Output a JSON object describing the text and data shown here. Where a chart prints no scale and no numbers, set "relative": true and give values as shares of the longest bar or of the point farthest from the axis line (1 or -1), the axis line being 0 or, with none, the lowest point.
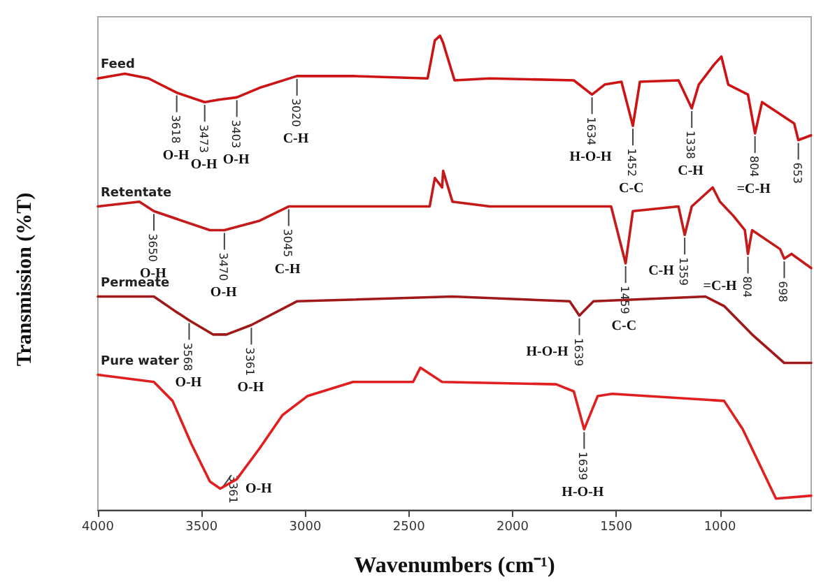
{
  "chart_data": {
    "type": "line",
    "relative": true,
    "xlabel": "Wavenumbers (cm⁻¹)",
    "ylabel": "Transmission (%T)",
    "xlim": [
      4000,
      560
    ],
    "xticks": [
      4000,
      3500,
      3000,
      2500,
      2000,
      1500,
      1000
    ],
    "grid": false,
    "legend": false,
    "marker": "none",
    "line_style": "solid",
    "series": [
      {
        "name": "Feed",
        "color": "#cc1414",
        "x": [
          4000,
          3870,
          3756,
          3620,
          3485,
          3418,
          3330,
          3221,
          3040,
          2768,
          2410,
          2375,
          2350,
          2335,
          2315,
          2280,
          2110,
          1705,
          1617,
          1556,
          1475,
          1420,
          1386,
          1200,
          1136,
          1102,
          1027,
          993,
          960,
          865,
          831,
          797,
          642,
          622,
          561
        ],
        "values": [
          0.91,
          0.92,
          0.91,
          0.88,
          0.86,
          0.865,
          0.87,
          0.89,
          0.915,
          0.915,
          0.91,
          0.99,
          1.0,
          0.985,
          0.956,
          0.906,
          0.91,
          0.906,
          0.876,
          0.897,
          0.903,
          0.81,
          0.903,
          0.906,
          0.847,
          0.897,
          0.94,
          0.956,
          0.897,
          0.876,
          0.794,
          0.86,
          0.815,
          0.78,
          0.79
        ]
      },
      {
        "name": "Retentate",
        "color": "#c41a1a",
        "x": [
          4000,
          3800,
          3730,
          3460,
          3390,
          3220,
          3080,
          2940,
          2400,
          2375,
          2340,
          2335,
          2290,
          2110,
          1525,
          1455,
          1420,
          1200,
          1170,
          1136,
          1035,
          1000,
          935,
          880,
          865,
          845,
          710,
          690,
          655,
          560
        ],
        "values": [
          0.64,
          0.65,
          0.63,
          0.59,
          0.59,
          0.61,
          0.64,
          0.64,
          0.64,
          0.7,
          0.68,
          0.715,
          0.65,
          0.64,
          0.64,
          0.52,
          0.63,
          0.64,
          0.58,
          0.64,
          0.68,
          0.65,
          0.62,
          0.59,
          0.54,
          0.59,
          0.55,
          0.53,
          0.54,
          0.51
        ]
      },
      {
        "name": "Permeate",
        "color": "#a01818",
        "x": [
          4000,
          3730,
          3630,
          3560,
          3445,
          3380,
          3260,
          3040,
          2290,
          1725,
          1678,
          1610,
          1070,
          980,
          845,
          690,
          560
        ],
        "values": [
          0.45,
          0.45,
          0.42,
          0.4,
          0.37,
          0.37,
          0.39,
          0.44,
          0.45,
          0.44,
          0.41,
          0.44,
          0.45,
          0.43,
          0.37,
          0.31,
          0.31
        ]
      },
      {
        "name": "Pure water",
        "color": "#e02020",
        "x": [
          4000,
          3730,
          3640,
          3550,
          3460,
          3410,
          3330,
          3220,
          3110,
          2990,
          2770,
          2480,
          2445,
          2340,
          1790,
          1705,
          1655,
          1590,
          1520,
          980,
          890,
          730,
          560
        ],
        "values": [
          0.285,
          0.27,
          0.23,
          0.14,
          0.06,
          0.045,
          0.065,
          0.13,
          0.2,
          0.24,
          0.27,
          0.27,
          0.3,
          0.27,
          0.265,
          0.25,
          0.17,
          0.24,
          0.245,
          0.23,
          0.17,
          0.024,
          0.03
        ]
      }
    ],
    "annotations": [
      {
        "text": "3618",
        "x": 3620,
        "y": 0.88
      },
      "O-H",
      {
        "text": "3473",
        "x": 3485,
        "y": 0.86
      },
      "O-H",
      {
        "text": "3403",
        "x": 3330,
        "y": 0.87
      },
      "O-H",
      {
        "text": "3020",
        "x": 3040,
        "y": 0.915
      },
      "C-H",
      {
        "text": "1634",
        "x": 1617,
        "y": 0.876
      },
      "H-O-H",
      {
        "text": "1452",
        "x": 1420,
        "y": 0.81
      },
      "C-C",
      {
        "text": "1338",
        "x": 1136,
        "y": 0.847
      },
      "C-H",
      {
        "text": "804",
        "x": 831,
        "y": 0.794
      },
      "=C-H",
      {
        "text": "653",
        "x": 622,
        "y": 0.78
      },
      {
        "text": "3650",
        "x": 3730,
        "y": 0.63
      },
      "O-H",
      {
        "text": "3470",
        "x": 3390,
        "y": 0.59
      },
      "O-H",
      {
        "text": "3045",
        "x": 3080,
        "y": 0.64
      },
      "C-H",
      {
        "text": "1459",
        "x": 1455,
        "y": 0.52
      },
      "C-C",
      {
        "text": "1359",
        "x": 1170,
        "y": 0.58
      },
      "C-H",
      {
        "text": "804",
        "x": 865,
        "y": 0.54
      },
      "=C-H",
      {
        "text": "698",
        "x": 690,
        "y": 0.53
      },
      {
        "text": "3568",
        "x": 3560,
        "y": 0.4
      },
      "O-H",
      {
        "text": "3361",
        "x": 3260,
        "y": 0.39
      },
      "O-H",
      {
        "text": "1639",
        "x": 1678,
        "y": 0.41
      },
      "H-O-H",
      {
        "text": "3361",
        "x": 3410,
        "y": 0.045
      },
      "O-H",
      {
        "text": "1639",
        "x": 1655,
        "y": 0.17
      },
      "H-O-H"
    ]
  }
}
